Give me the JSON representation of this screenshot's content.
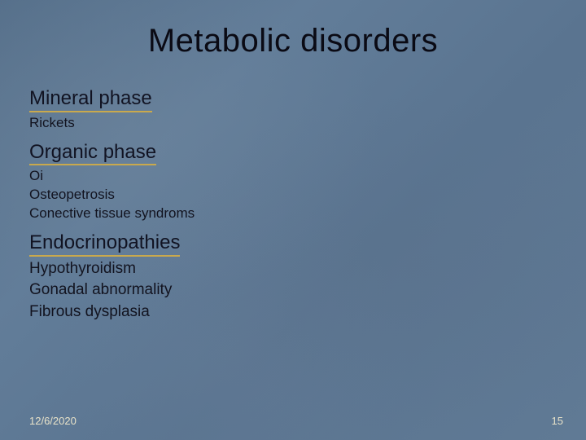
{
  "title": "Metabolic disorders",
  "sections": [
    {
      "heading": "Mineral phase",
      "items": [
        "Rickets"
      ],
      "item_class": "item"
    },
    {
      "heading": "Organic phase",
      "items": [
        "Oi",
        "Osteopetrosis",
        "Conective tissue syndroms"
      ],
      "item_class": "item"
    },
    {
      "heading": "Endocrinopathies",
      "items": [
        "Hypothyroidism",
        "Gonadal abnormality",
        "Fibrous dysplasia"
      ],
      "item_class": "item-lg"
    }
  ],
  "footer": {
    "date": "12/6/2020",
    "page": "15"
  },
  "style": {
    "background_color": "#5f7a96",
    "text_color": "#0a0a14",
    "underline_color": "#c9a94d",
    "footer_color": "#e9e3c9",
    "title_fontsize": 40,
    "heading_fontsize": 24,
    "item_fontsize": 17,
    "item_lg_fontsize": 19,
    "footer_fontsize": 13
  }
}
